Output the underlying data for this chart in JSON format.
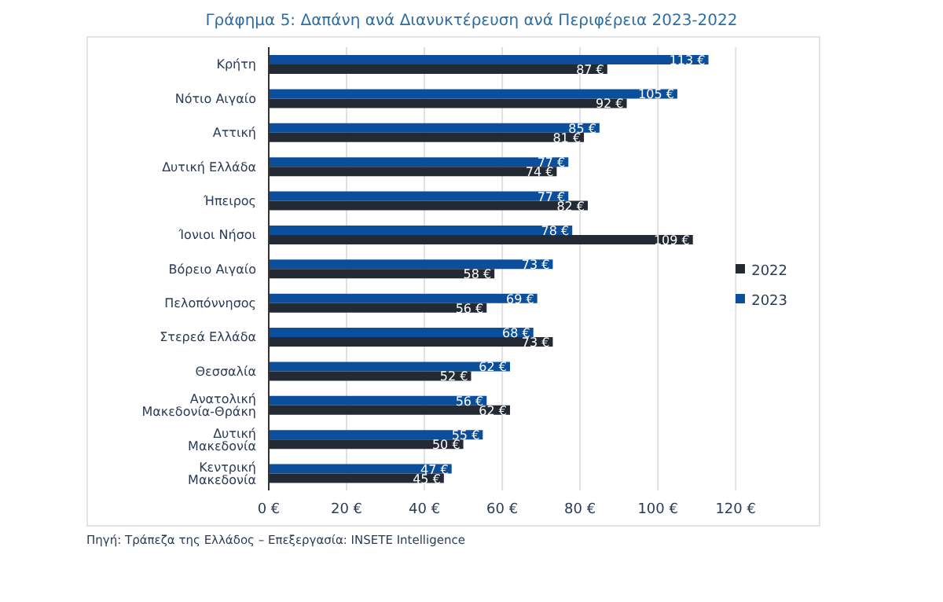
{
  "chart_data": {
    "type": "bar",
    "orientation": "horizontal",
    "title": "Γράφημα 5: Δαπάνη ανά Διανυκτέρευση ανά Περιφέρεια 2023-2022",
    "categories": [
      "Κρήτη",
      "Νότιο Αιγαίο",
      "Αττική",
      "Δυτική Ελλάδα",
      "Ήπειρος",
      "Ίονιοι Νήσοι",
      "Βόρειο Αιγαίο",
      "Πελοπόννησος",
      "Στερεά Ελλάδα",
      "Θεσσαλία",
      "Ανατολική Μακεδονία-Θράκη",
      "Δυτική Μακεδονία",
      "Κεντρική Μακεδονία"
    ],
    "series": [
      {
        "name": "2023",
        "color": "#0b4f9c",
        "values": [
          113,
          105,
          85,
          77,
          77,
          78,
          73,
          69,
          68,
          62,
          56,
          55,
          47
        ],
        "value_labels": [
          "113 €",
          "105 €",
          "85 €",
          "77 €",
          "77 €",
          "78 €",
          "73 €",
          "69 €",
          "68 €",
          "62 €",
          "56 €",
          "55 €",
          "47 €"
        ]
      },
      {
        "name": "2022",
        "color": "#242a33",
        "values": [
          87,
          92,
          81,
          74,
          82,
          109,
          58,
          56,
          73,
          52,
          62,
          50,
          45
        ],
        "value_labels": [
          "87 €",
          "92 €",
          "81 €",
          "74 €",
          "82 €",
          "109 €",
          "58 €",
          "56 €",
          "73 €",
          "52 €",
          "62 €",
          "50 €",
          "45 €"
        ]
      }
    ],
    "xlim": [
      0,
      120
    ],
    "xticks": [
      {
        "value": 0,
        "label": "0 €"
      },
      {
        "value": 20,
        "label": "20 €"
      },
      {
        "value": 40,
        "label": "40 €"
      },
      {
        "value": 60,
        "label": "60 €"
      },
      {
        "value": 80,
        "label": "80 €"
      },
      {
        "value": 100,
        "label": "100 €"
      },
      {
        "value": 120,
        "label": "120 €"
      }
    ],
    "grid": "x",
    "legend": "right",
    "annotations": [
      "Πηγή: Τράπεζα της Ελλάδος – Επεξεργασία: INSETE Intelligence"
    ]
  }
}
